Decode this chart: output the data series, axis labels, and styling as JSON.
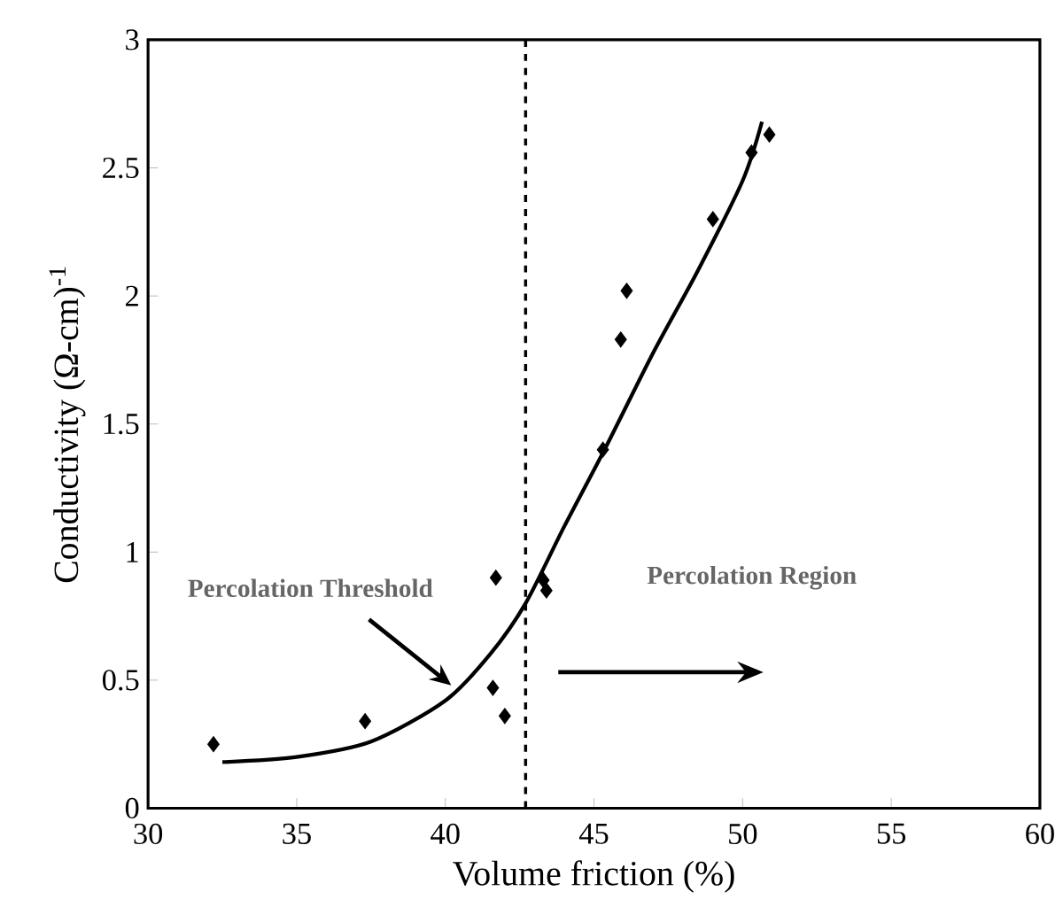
{
  "chart_data": {
    "type": "scatter",
    "xlabel": "Volume friction (%)",
    "ylabel": "Conductivity (Ω-cm)$^{-1}$",
    "xlim": [
      30,
      60
    ],
    "ylim": [
      0,
      3
    ],
    "xticks": [
      30,
      35,
      40,
      45,
      50,
      55,
      60
    ],
    "yticks": [
      0,
      0.5,
      1,
      1.5,
      2,
      2.5,
      3
    ],
    "grid": false,
    "series": [
      {
        "color": "#000000",
        "marker": "diamond",
        "x": [
          32.2,
          37.3,
          41.6,
          41.7,
          42.0,
          43.3,
          43.4,
          45.3,
          45.9,
          46.1,
          49.0,
          50.3,
          50.9
        ],
        "values": [
          0.25,
          0.34,
          0.47,
          0.9,
          0.36,
          0.89,
          0.85,
          1.4,
          1.83,
          2.02,
          2.3,
          2.56,
          2.63
        ]
      },
      {
        "type": "line",
        "color": "#000000",
        "marker": "none",
        "line_style": "solid",
        "x": [
          32.5,
          35,
          37.5,
          40,
          41.5,
          42.7,
          44,
          45.4,
          47,
          48.5,
          50,
          50.65
        ],
        "values": [
          0.18,
          0.2,
          0.26,
          0.42,
          0.6,
          0.8,
          1.1,
          1.41,
          1.78,
          2.1,
          2.45,
          2.68
        ]
      }
    ],
    "ref_lines": [
      {
        "axis": "x",
        "value": 42.7,
        "line_style": "dashed",
        "color": "#000000"
      }
    ],
    "annotations": [
      {
        "text": "Percolation Threshold",
        "x": 40.2,
        "y": 0.48
      },
      "Percolation Region"
    ]
  }
}
